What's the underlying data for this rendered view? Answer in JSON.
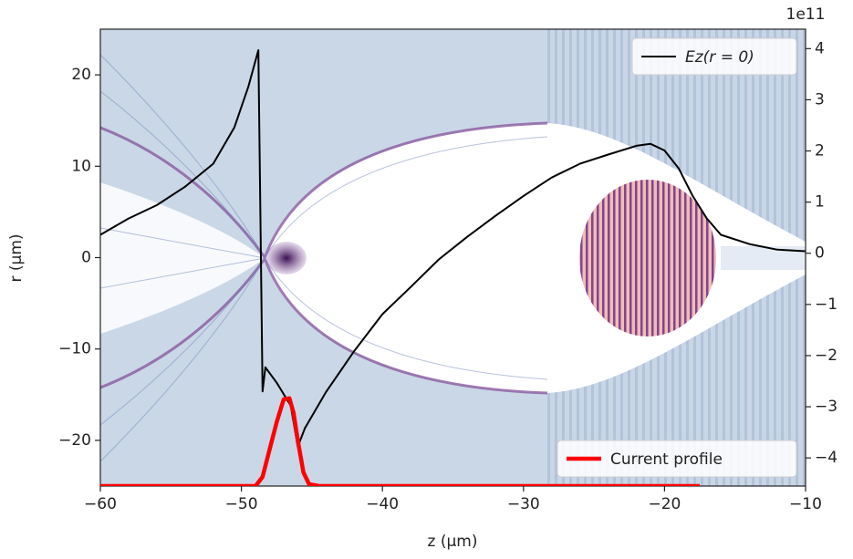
{
  "chart_data": {
    "type": "line",
    "xlabel": "z (μm)",
    "ylabel": "r (μm)",
    "y2_offset_label": "1e11",
    "xlim": [
      -60,
      -10
    ],
    "xticks": [
      {
        "value": -60,
        "label": "−60"
      },
      {
        "value": -50,
        "label": "−50"
      },
      {
        "value": -40,
        "label": "−40"
      },
      {
        "value": -30,
        "label": "−30"
      },
      {
        "value": -20,
        "label": "−20"
      },
      {
        "value": -10,
        "label": "−10"
      }
    ],
    "ylim": [
      -25,
      25
    ],
    "yticks": [
      {
        "value": -20,
        "label": "−20"
      },
      {
        "value": -10,
        "label": "−10"
      },
      0,
      10,
      20
    ],
    "y2lim": [
      -4.55,
      4.38
    ],
    "y2ticks": [
      {
        "value": -4,
        "label": "−4"
      },
      {
        "value": -3,
        "label": "−3"
      },
      {
        "value": -2,
        "label": "−2"
      },
      {
        "value": -1,
        "label": "−1"
      },
      0,
      1,
      2,
      3,
      4
    ],
    "series": [
      {
        "name": "Ez(r = 0)",
        "color": "#000000",
        "axis": "y2",
        "legend": "upper right",
        "x": [
          -60,
          -58,
          -56,
          -54,
          -52,
          -50.5,
          -49.5,
          -48.8,
          -48.5,
          -48.3,
          -47.5,
          -46.5,
          -46,
          -45.5,
          -44,
          -42,
          -40,
          -38,
          -36,
          -34,
          -32,
          -30,
          -28,
          -26,
          -24,
          -22,
          -21,
          -20,
          -19,
          -18,
          -17,
          -16,
          -14,
          -12,
          -10
        ],
        "values": [
          0.36,
          0.68,
          0.94,
          1.3,
          1.75,
          2.46,
          3.26,
          3.97,
          -2.7,
          -2.23,
          -2.53,
          -2.98,
          -3.78,
          -3.42,
          -2.71,
          -1.91,
          -1.19,
          -0.66,
          -0.12,
          0.32,
          0.73,
          1.12,
          1.48,
          1.75,
          1.93,
          2.1,
          2.14,
          2.01,
          1.66,
          1.12,
          0.68,
          0.36,
          0.18,
          0.07,
          0.04
        ]
      },
      {
        "name": "Current profile",
        "color": "#ff0000",
        "axis": "y",
        "legend": "lower right",
        "x": [
          -60,
          -49,
          -48.5,
          -48,
          -47.5,
          -47,
          -46.6,
          -46.3,
          -46,
          -45.6,
          -45.2,
          -44.5,
          -17.5
        ],
        "values": [
          -25,
          -25,
          -24,
          -21,
          -18,
          -15.5,
          -15.4,
          -17,
          -20,
          -23.5,
          -24.8,
          -25,
          -25
        ]
      }
    ]
  }
}
